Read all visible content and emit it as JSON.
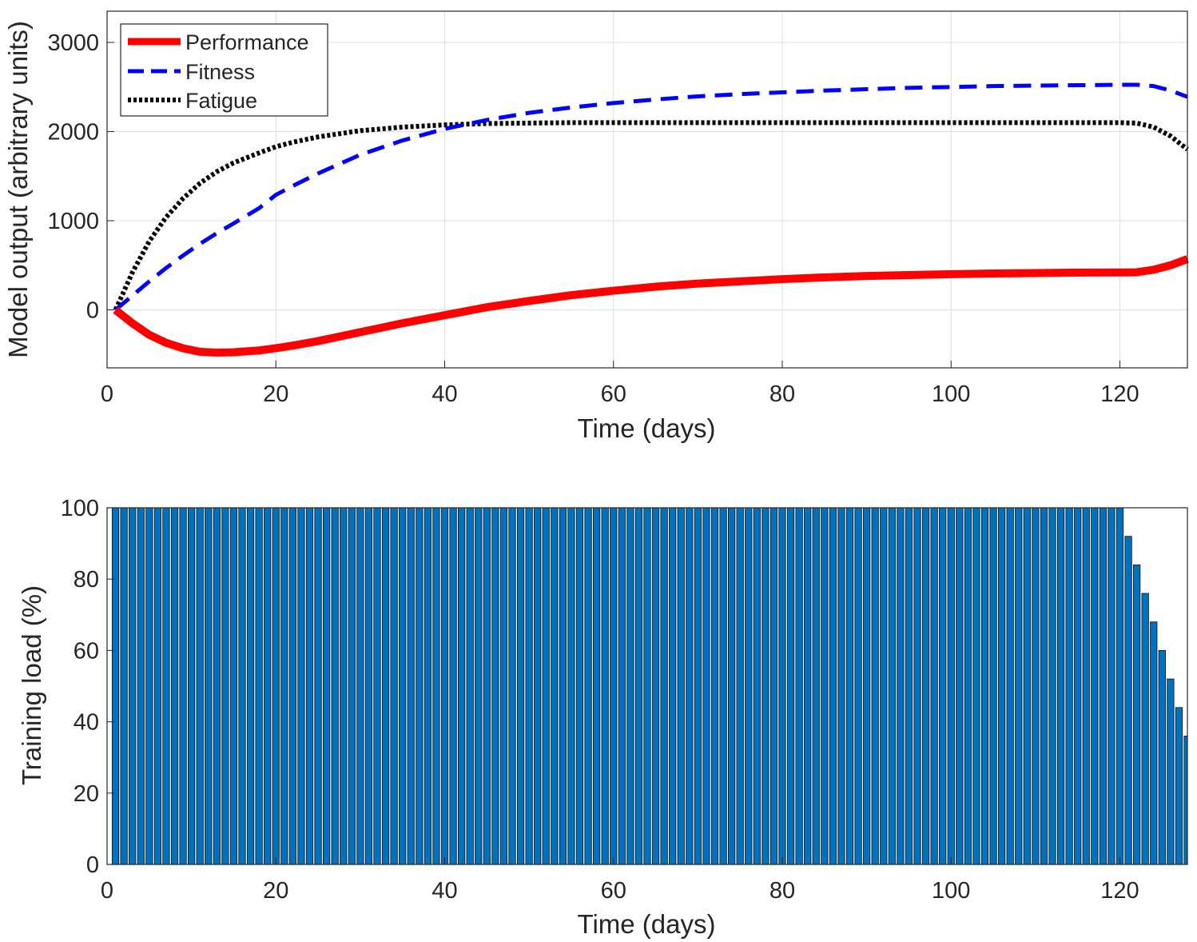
{
  "chart_data": [
    {
      "type": "line",
      "xlabel": "Time (days)",
      "ylabel": "Model output (arbitrary units)",
      "xlim": [
        0,
        128
      ],
      "ylim": [
        -650,
        3350
      ],
      "xticks": [
        0,
        20,
        40,
        60,
        80,
        100,
        120
      ],
      "yticks": [
        0,
        1000,
        2000,
        3000
      ],
      "grid": true,
      "legend_position": "top-left",
      "series": [
        {
          "name": "Performance",
          "color": "#ff0000",
          "style": "solid",
          "x": [
            1,
            3,
            5,
            7,
            9,
            11,
            13,
            15,
            18,
            20,
            22,
            25,
            30,
            35,
            40,
            45,
            50,
            55,
            60,
            65,
            70,
            75,
            80,
            85,
            90,
            95,
            100,
            105,
            110,
            115,
            120,
            122,
            124,
            126,
            128
          ],
          "y": [
            0,
            -150,
            -280,
            -370,
            -430,
            -470,
            -480,
            -475,
            -455,
            -430,
            -400,
            -350,
            -250,
            -150,
            -60,
            30,
            100,
            165,
            215,
            260,
            295,
            320,
            345,
            365,
            380,
            390,
            400,
            408,
            413,
            418,
            420,
            422,
            450,
            500,
            570
          ]
        },
        {
          "name": "Fitness",
          "color": "#0000ff",
          "style": "dashed",
          "x": [
            1,
            3,
            5,
            7,
            9,
            11,
            13,
            15,
            18,
            20,
            22,
            25,
            30,
            35,
            40,
            45,
            50,
            55,
            60,
            65,
            70,
            75,
            80,
            85,
            90,
            95,
            100,
            105,
            110,
            115,
            120,
            122,
            124,
            126,
            128
          ],
          "y": [
            0,
            160,
            320,
            470,
            610,
            740,
            860,
            970,
            1140,
            1290,
            1390,
            1530,
            1740,
            1900,
            2030,
            2130,
            2210,
            2270,
            2320,
            2360,
            2395,
            2420,
            2440,
            2460,
            2475,
            2490,
            2500,
            2510,
            2515,
            2520,
            2525,
            2525,
            2510,
            2460,
            2390
          ]
        },
        {
          "name": "Fatigue",
          "color": "#000000",
          "style": "dotted",
          "x": [
            1,
            3,
            5,
            7,
            9,
            11,
            13,
            15,
            18,
            20,
            22,
            25,
            30,
            35,
            40,
            45,
            50,
            55,
            60,
            70,
            80,
            90,
            100,
            110,
            120,
            122,
            124,
            126,
            128
          ],
          "y": [
            0,
            420,
            770,
            1040,
            1250,
            1420,
            1550,
            1650,
            1760,
            1830,
            1880,
            1940,
            2010,
            2050,
            2075,
            2090,
            2095,
            2100,
            2100,
            2100,
            2100,
            2100,
            2100,
            2100,
            2100,
            2095,
            2050,
            1950,
            1800
          ]
        }
      ]
    },
    {
      "type": "bar",
      "xlabel": "Time (days)",
      "ylabel": "Training load (%)",
      "xlim": [
        0,
        128
      ],
      "ylim": [
        0,
        100
      ],
      "xticks": [
        0,
        20,
        40,
        60,
        80,
        100,
        120
      ],
      "yticks": [
        0,
        20,
        40,
        60,
        80,
        100
      ],
      "grid": false,
      "bar_color": "#0072bd",
      "days_at_full_load": 120,
      "full_load_value": 100,
      "taper": {
        "x": [
          121,
          122,
          123,
          124,
          125,
          126,
          127,
          128
        ],
        "values": [
          92,
          84,
          76,
          68,
          60,
          52,
          44,
          36
        ]
      }
    }
  ]
}
